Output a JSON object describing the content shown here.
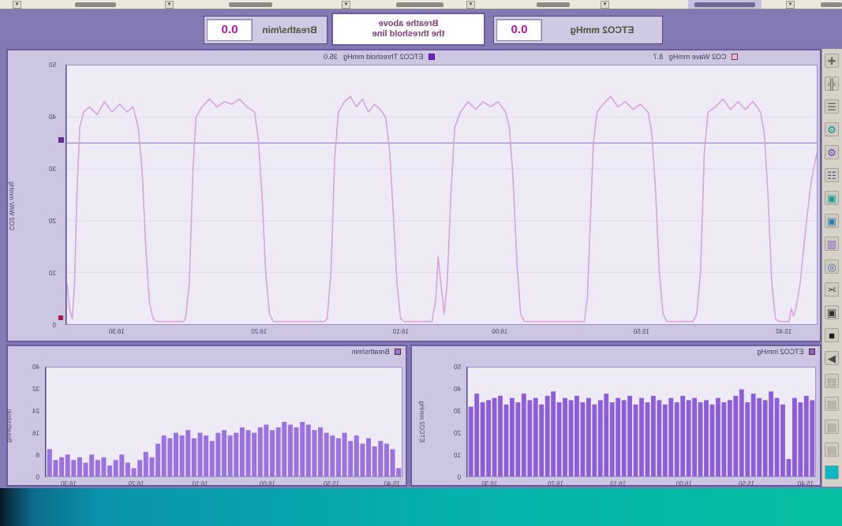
{
  "top_strip": {
    "items": [
      {
        "label": ""
      },
      {
        "label": ""
      },
      {
        "label": ""
      },
      {
        "label": ""
      },
      {
        "label": ""
      },
      {
        "label": ""
      }
    ]
  },
  "header": {
    "etco2": {
      "label": "ETCO2 mmHg",
      "value": "0.0"
    },
    "message": {
      "line1": "Breathe above",
      "line2": "the threshold line"
    },
    "breaths": {
      "label": "Breaths/min",
      "value": "0.0"
    }
  },
  "toolbar": {
    "icons": [
      {
        "name": "wrench-icon",
        "glyph": "✚",
        "color": "#6b6b66",
        "bg": "#cfcbc0"
      },
      {
        "name": "clamp-icon",
        "glyph": "╬",
        "color": "#5c5c58",
        "bg": "#cfcbc0"
      },
      {
        "name": "ruler-icon",
        "glyph": "☰",
        "color": "#5c5c58",
        "bg": "#cfcbc0"
      },
      {
        "name": "gears-icon",
        "glyph": "⚙",
        "color": "#0f8f8f",
        "bg": "#cfcbc0"
      },
      {
        "name": "gear-edit-icon",
        "glyph": "⚙",
        "color": "#6a3fb4",
        "bg": "#cfcbc0"
      },
      {
        "name": "sliders-icon",
        "glyph": "☷",
        "color": "#44519e",
        "bg": "#cfcbc0"
      },
      {
        "name": "sensor-icon",
        "glyph": "▣",
        "color": "#169d9a",
        "bg": "#cfcbc0"
      },
      {
        "name": "monitor-icon",
        "glyph": "▣",
        "color": "#2a7fb0",
        "bg": "#cfcbc0"
      },
      {
        "name": "chart-icon",
        "glyph": "▥",
        "color": "#7a5fd0",
        "bg": "#cfcbc0"
      },
      {
        "name": "zoom-icon",
        "glyph": "◎",
        "color": "#3a6fb0",
        "bg": "#cfcbc0"
      },
      {
        "name": "scissors-icon",
        "glyph": "✂",
        "color": "#3c3c3c",
        "bg": "#cfcbc0"
      },
      {
        "name": "camera-icon",
        "glyph": "▣",
        "color": "#2f2f2f",
        "bg": "#cfcbc0"
      },
      {
        "name": "screen-icon",
        "glyph": "■",
        "color": "#1d1d1d",
        "bg": "#cfcbc0"
      },
      {
        "name": "play-icon",
        "glyph": "▶",
        "color": "#4a4a4a",
        "bg": "#cfcbc0"
      },
      {
        "name": "record-icon",
        "glyph": "▤",
        "color": "#9a9a92",
        "bg": "#cfcbc0"
      },
      {
        "name": "pause-icon",
        "glyph": "▤",
        "color": "#9a9a92",
        "bg": "#cfcbc0"
      },
      {
        "name": "save-icon",
        "glyph": "▤",
        "color": "#9a9a92",
        "bg": "#cfcbc0"
      },
      {
        "name": "sheet-icon",
        "glyph": "▤",
        "color": "#9a9a92",
        "bg": "#cfcbc0"
      },
      {
        "name": "highlight-icon",
        "glyph": "■",
        "color": "#0fb6c6",
        "bg": "#0fb6c6"
      }
    ]
  },
  "colors": {
    "band": "#837ab4",
    "panel": "#cdc6e2",
    "plot_bg": "#eeebf7",
    "wave": "#d9a3de",
    "threshold_line": "#a08cc8",
    "etco2_bars": "#8d5ed5",
    "breath_bars": "#9a74dc",
    "value_text": "#b517a5",
    "teal_left": "#04bfa2",
    "teal_right": "#0a93ac"
  },
  "chart_data": [
    {
      "id": "co2-wave",
      "type": "line",
      "title": "CO2 Wave mmHg",
      "current_value": "8.7",
      "ylabel": "CO2 WAV mmHg",
      "ylim": [
        0,
        50
      ],
      "yticks": [
        0,
        10,
        20,
        30,
        40,
        50
      ],
      "xticklabels": [
        "15:40",
        "15:50",
        "16:00",
        "16:10",
        "16:20",
        "16:30"
      ],
      "xtick_pos": [
        0.045,
        0.235,
        0.424,
        0.556,
        0.745,
        0.935
      ],
      "threshold": {
        "label": "ETCO2 Threshold mmHg",
        "value": "35.0",
        "color": "#7c1fd4"
      },
      "line_color": "#d9a3de",
      "points": [
        [
          0,
          33
        ],
        [
          0.008,
          27
        ],
        [
          0.015,
          18
        ],
        [
          0.022,
          8
        ],
        [
          0.028,
          3
        ],
        [
          0.031,
          1.5
        ],
        [
          0.034,
          3
        ],
        [
          0.037,
          0.5
        ],
        [
          0.05,
          0.5
        ],
        [
          0.055,
          1
        ],
        [
          0.06,
          8
        ],
        [
          0.065,
          25
        ],
        [
          0.07,
          37
        ],
        [
          0.075,
          41
        ],
        [
          0.085,
          43
        ],
        [
          0.095,
          41.5
        ],
        [
          0.105,
          43
        ],
        [
          0.115,
          41.5
        ],
        [
          0.125,
          43.5
        ],
        [
          0.135,
          42
        ],
        [
          0.145,
          41
        ],
        [
          0.15,
          33
        ],
        [
          0.155,
          10
        ],
        [
          0.16,
          2
        ],
        [
          0.165,
          0.5
        ],
        [
          0.2,
          0.5
        ],
        [
          0.205,
          2
        ],
        [
          0.21,
          10
        ],
        [
          0.215,
          26
        ],
        [
          0.22,
          37
        ],
        [
          0.225,
          41
        ],
        [
          0.235,
          42.5
        ],
        [
          0.245,
          41.5
        ],
        [
          0.255,
          43
        ],
        [
          0.265,
          42
        ],
        [
          0.275,
          44
        ],
        [
          0.285,
          42.5
        ],
        [
          0.293,
          41
        ],
        [
          0.298,
          35
        ],
        [
          0.302,
          20
        ],
        [
          0.306,
          5
        ],
        [
          0.31,
          0.5
        ],
        [
          0.39,
          0.5
        ],
        [
          0.395,
          2
        ],
        [
          0.4,
          12
        ],
        [
          0.405,
          28
        ],
        [
          0.41,
          38
        ],
        [
          0.415,
          41
        ],
        [
          0.425,
          43
        ],
        [
          0.435,
          42
        ],
        [
          0.445,
          43
        ],
        [
          0.455,
          41.5
        ],
        [
          0.465,
          43
        ],
        [
          0.475,
          41
        ],
        [
          0.483,
          38
        ],
        [
          0.488,
          25
        ],
        [
          0.493,
          8
        ],
        [
          0.497,
          2
        ],
        [
          0.5,
          6
        ],
        [
          0.505,
          13
        ],
        [
          0.508,
          5
        ],
        [
          0.513,
          0.5
        ],
        [
          0.55,
          0.5
        ],
        [
          0.555,
          1
        ],
        [
          0.56,
          8
        ],
        [
          0.565,
          22
        ],
        [
          0.57,
          34
        ],
        [
          0.575,
          40
        ],
        [
          0.582,
          41.5
        ],
        [
          0.59,
          42.5
        ],
        [
          0.598,
          41
        ],
        [
          0.606,
          43.5
        ],
        [
          0.614,
          42
        ],
        [
          0.622,
          44
        ],
        [
          0.63,
          43
        ],
        [
          0.638,
          41
        ],
        [
          0.643,
          32
        ],
        [
          0.648,
          10
        ],
        [
          0.653,
          1
        ],
        [
          0.657,
          0.5
        ],
        [
          0.725,
          0.5
        ],
        [
          0.73,
          2
        ],
        [
          0.735,
          10
        ],
        [
          0.74,
          25
        ],
        [
          0.745,
          36
        ],
        [
          0.75,
          41
        ],
        [
          0.76,
          42
        ],
        [
          0.77,
          43.5
        ],
        [
          0.78,
          42.5
        ],
        [
          0.79,
          43
        ],
        [
          0.8,
          42
        ],
        [
          0.81,
          43.5
        ],
        [
          0.82,
          42
        ],
        [
          0.828,
          40
        ],
        [
          0.832,
          30
        ],
        [
          0.837,
          8
        ],
        [
          0.842,
          1
        ],
        [
          0.845,
          0.5
        ],
        [
          0.88,
          0.5
        ],
        [
          0.885,
          1
        ],
        [
          0.89,
          4
        ],
        [
          0.895,
          15
        ],
        [
          0.9,
          30
        ],
        [
          0.905,
          38
        ],
        [
          0.912,
          42
        ],
        [
          0.92,
          41
        ],
        [
          0.93,
          42.5
        ],
        [
          0.94,
          41
        ],
        [
          0.95,
          43
        ],
        [
          0.96,
          40.5
        ],
        [
          0.97,
          42
        ],
        [
          0.978,
          41
        ],
        [
          0.983,
          38
        ],
        [
          0.987,
          25
        ],
        [
          0.99,
          8
        ],
        [
          0.993,
          1
        ],
        [
          0.997,
          3
        ],
        [
          1,
          8
        ]
      ]
    },
    {
      "id": "etco2-trend",
      "type": "bar",
      "title": "ETCO2 mmHg",
      "ylabel": "ETCO2 mmHg",
      "ylim": [
        0,
        50
      ],
      "yticks": [
        0,
        10,
        20,
        30,
        40,
        50
      ],
      "xticklabels": [
        "15:40",
        "15:50",
        "16:00",
        "16:10",
        "16:20",
        "16:30"
      ],
      "xtick_pos": [
        0.03,
        0.2,
        0.38,
        0.57,
        0.75,
        0.94
      ],
      "bar_color": "#8d5ed5",
      "values": [
        35,
        37,
        34,
        36,
        8,
        33,
        36,
        39,
        35,
        36,
        38,
        34,
        40,
        37,
        35,
        34,
        36,
        33,
        35,
        34,
        36,
        35,
        37,
        34,
        36,
        33,
        35,
        37,
        34,
        36,
        33,
        37,
        35,
        36,
        34,
        38,
        35,
        33,
        36,
        34,
        37,
        35,
        36,
        34,
        39,
        37,
        33,
        36,
        35,
        38,
        34,
        36,
        33,
        37,
        36,
        35,
        34,
        38,
        32
      ]
    },
    {
      "id": "breaths-trend",
      "type": "bar",
      "title": "Breaths/min",
      "ylabel": "Breaths/min",
      "ylim": [
        0,
        40
      ],
      "yticks": [
        0,
        8,
        16,
        24,
        32,
        40
      ],
      "xticklabels": [
        "15:40",
        "15:50",
        "16:00",
        "16:10",
        "16:20",
        "16:30"
      ],
      "xtick_pos": [
        0.03,
        0.2,
        0.38,
        0.57,
        0.75,
        0.94
      ],
      "bar_color": "#9a74dc",
      "values": [
        3,
        10,
        12,
        13,
        11,
        14,
        12,
        15,
        13,
        16,
        14,
        15,
        16,
        18,
        17,
        19,
        20,
        18,
        19,
        20,
        18,
        17,
        19,
        18,
        16,
        17,
        18,
        16,
        15,
        17,
        16,
        13,
        15,
        16,
        14,
        17,
        15,
        16,
        14,
        15,
        12,
        7,
        9,
        6,
        3,
        5,
        8,
        6,
        4,
        7,
        6,
        8,
        5,
        7,
        6,
        8,
        7,
        6,
        10
      ]
    }
  ]
}
